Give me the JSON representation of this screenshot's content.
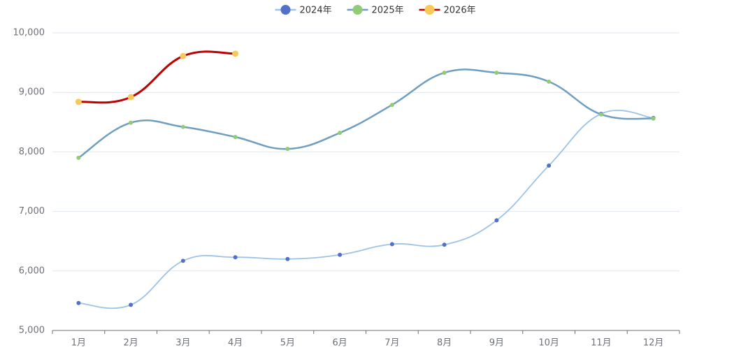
{
  "chart_data": {
    "type": "line",
    "categories": [
      "1月",
      "2月",
      "3月",
      "4月",
      "5月",
      "6月",
      "7月",
      "8月",
      "9月",
      "10月",
      "11月",
      "12月"
    ],
    "series": [
      {
        "name": "2024年",
        "color": "#9dc3e6",
        "marker_color": "#5470c6",
        "values": [
          5460,
          5430,
          6170,
          6230,
          6200,
          6270,
          6450,
          6440,
          6850,
          7770,
          8640,
          8570
        ]
      },
      {
        "name": "2025年",
        "color": "#6f9ec0",
        "marker_color": "#91cc75",
        "values": [
          7900,
          8490,
          8420,
          8250,
          8050,
          8320,
          8790,
          9330,
          9330,
          9180,
          8630,
          8560
        ]
      },
      {
        "name": "2026年",
        "color": "#c00000",
        "marker_color": "#fac858",
        "values": [
          8840,
          8920,
          9610,
          9650,
          null,
          null,
          null,
          null,
          null,
          null,
          null,
          null
        ]
      }
    ],
    "ylim": [
      5000,
      10000
    ],
    "yticks": [
      {
        "value": 5000,
        "label": "5,000"
      },
      {
        "value": 6000,
        "label": "6,000"
      },
      {
        "value": 7000,
        "label": "7,000"
      },
      {
        "value": 8000,
        "label": "8,000"
      },
      {
        "value": 9000,
        "label": "9,000"
      },
      {
        "value": 10000,
        "label": "10,000"
      }
    ],
    "grid": true,
    "legend": "top"
  }
}
